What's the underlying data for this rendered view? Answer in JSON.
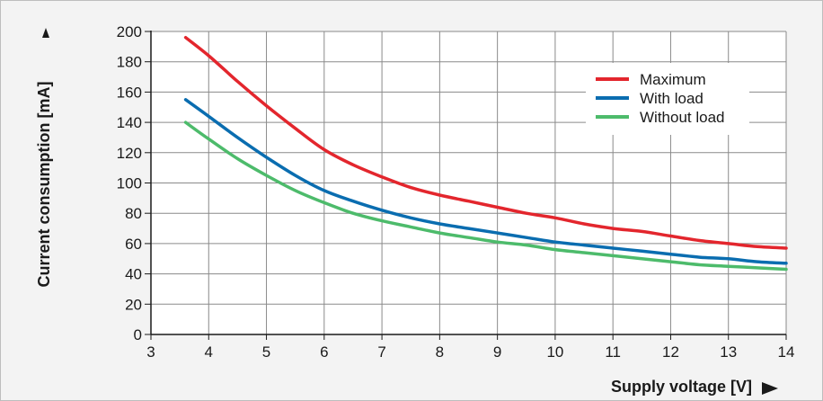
{
  "chart_data": {
    "type": "line",
    "title": "",
    "xlabel": "Supply voltage [V]",
    "ylabel": "Current consumption [mA]",
    "xlim": [
      3,
      14
    ],
    "ylim": [
      0,
      200
    ],
    "x_ticks": [
      3,
      4,
      5,
      6,
      7,
      8,
      9,
      10,
      11,
      12,
      13,
      14
    ],
    "y_ticks": [
      0,
      20,
      40,
      60,
      80,
      100,
      120,
      140,
      160,
      180,
      200
    ],
    "grid": true,
    "legend_position": "top-right",
    "series": [
      {
        "name": "Maximum",
        "color": "#e3262d",
        "points": [
          [
            3.6,
            196
          ],
          [
            4,
            184
          ],
          [
            4.5,
            167
          ],
          [
            5,
            151
          ],
          [
            5.5,
            136
          ],
          [
            6,
            122
          ],
          [
            6.5,
            112
          ],
          [
            7,
            104
          ],
          [
            7.5,
            97
          ],
          [
            8,
            92
          ],
          [
            8.5,
            88
          ],
          [
            9,
            84
          ],
          [
            9.5,
            80
          ],
          [
            10,
            77
          ],
          [
            10.5,
            73
          ],
          [
            11,
            70
          ],
          [
            11.5,
            68
          ],
          [
            12,
            65
          ],
          [
            12.5,
            62
          ],
          [
            13,
            60
          ],
          [
            13.5,
            58
          ],
          [
            14,
            57
          ]
        ]
      },
      {
        "name": "With load",
        "color": "#0a6db0",
        "points": [
          [
            3.6,
            155
          ],
          [
            4,
            144
          ],
          [
            4.5,
            130
          ],
          [
            5,
            117
          ],
          [
            5.5,
            105
          ],
          [
            6,
            95
          ],
          [
            6.5,
            88
          ],
          [
            7,
            82
          ],
          [
            7.5,
            77
          ],
          [
            8,
            73
          ],
          [
            8.5,
            70
          ],
          [
            9,
            67
          ],
          [
            9.5,
            64
          ],
          [
            10,
            61
          ],
          [
            10.5,
            59
          ],
          [
            11,
            57
          ],
          [
            11.5,
            55
          ],
          [
            12,
            53
          ],
          [
            12.5,
            51
          ],
          [
            13,
            50
          ],
          [
            13.5,
            48
          ],
          [
            14,
            47
          ]
        ]
      },
      {
        "name": "Without load",
        "color": "#4dbb6b",
        "points": [
          [
            3.6,
            140
          ],
          [
            4,
            129
          ],
          [
            4.5,
            116
          ],
          [
            5,
            105
          ],
          [
            5.5,
            95
          ],
          [
            6,
            87
          ],
          [
            6.5,
            80
          ],
          [
            7,
            75
          ],
          [
            7.5,
            71
          ],
          [
            8,
            67
          ],
          [
            8.5,
            64
          ],
          [
            9,
            61
          ],
          [
            9.5,
            59
          ],
          [
            10,
            56
          ],
          [
            10.5,
            54
          ],
          [
            11,
            52
          ],
          [
            11.5,
            50
          ],
          [
            12,
            48
          ],
          [
            12.5,
            46
          ],
          [
            13,
            45
          ],
          [
            13.5,
            44
          ],
          [
            14,
            43
          ]
        ]
      }
    ]
  }
}
